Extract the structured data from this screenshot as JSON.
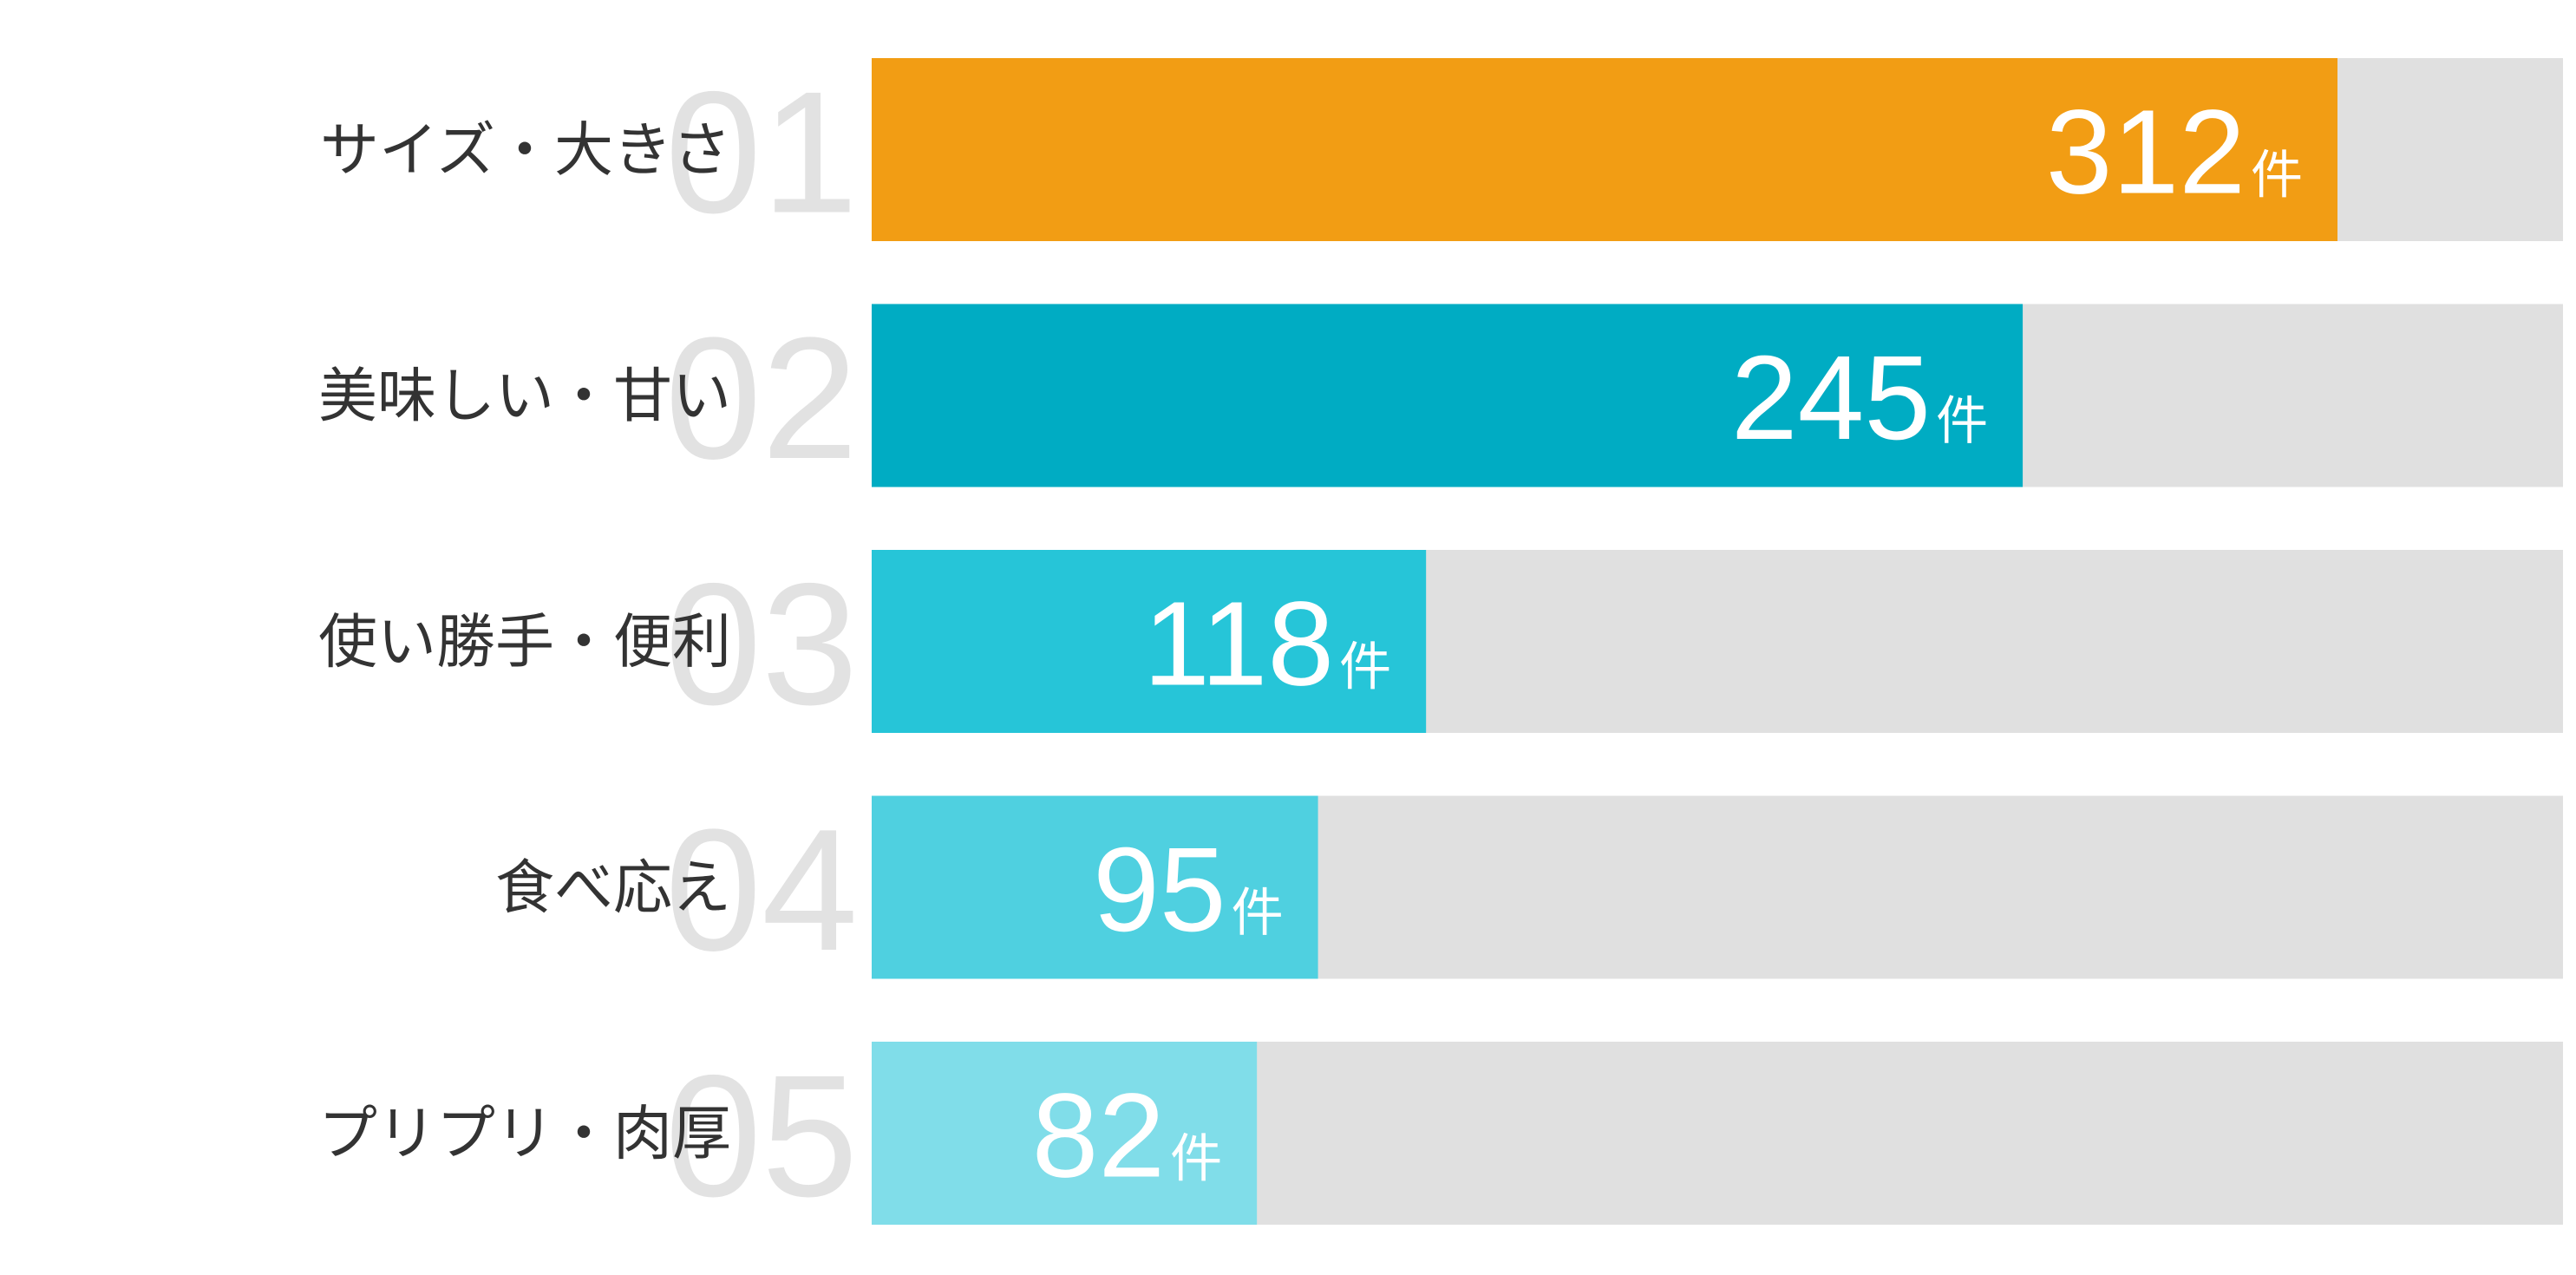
{
  "chart_data": {
    "type": "bar",
    "orientation": "horizontal",
    "ranks": [
      "01",
      "02",
      "03",
      "04",
      "05"
    ],
    "categories": [
      "サイズ・大きさ",
      "美味しい・甘い",
      "使い勝手・便利",
      "食べ応え",
      "プリプリ・肉厚"
    ],
    "values": [
      312,
      245,
      118,
      95,
      82
    ],
    "unit": "件",
    "colors": [
      "#f29d14",
      "#00acc3",
      "#26c5d8",
      "#4fd0e0",
      "#80dde9"
    ],
    "track_color": "#e0e0e0",
    "xlim": [
      0,
      360
    ]
  }
}
